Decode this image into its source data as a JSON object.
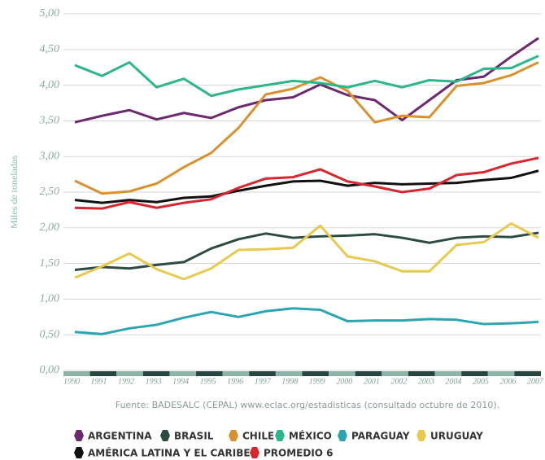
{
  "chart_data": {
    "type": "line",
    "y_label": "Miles de toneladas",
    "source": "Fuente: BADESALC (CEPAL) www.eclac.org/estadisticas (consultado octubre de 2010).",
    "categories": [
      "1990",
      "1991",
      "1992",
      "1993",
      "1994",
      "1995",
      "1996",
      "1997",
      "1998",
      "1999",
      "2000",
      "2001",
      "2002",
      "2003",
      "2004",
      "2005",
      "2006",
      "2007"
    ],
    "ylim": [
      0,
      5
    ],
    "yticks": [
      {
        "value": 0,
        "label": "0,00"
      },
      {
        "value": 0.5,
        "label": "0,50"
      },
      {
        "value": 1,
        "label": "1,00"
      },
      {
        "value": 1.5,
        "label": "1,50"
      },
      {
        "value": 2,
        "label": "2,00"
      },
      {
        "value": 2.5,
        "label": "2,50"
      },
      {
        "value": 3,
        "label": "3,00"
      },
      {
        "value": 3.5,
        "label": "3,50"
      },
      {
        "value": 4,
        "label": "4,00"
      },
      {
        "value": 4.5,
        "label": "4,50"
      },
      {
        "value": 5,
        "label": "5,00"
      }
    ],
    "grid": true,
    "series": [
      {
        "name": "ARGENTINA",
        "color": "#6b2a6e",
        "values": [
          3.48,
          3.57,
          3.65,
          3.52,
          3.61,
          3.54,
          3.69,
          3.79,
          3.83,
          4.01,
          3.86,
          3.79,
          3.51,
          3.79,
          4.07,
          4.12,
          4.4,
          4.66
        ]
      },
      {
        "name": "BRASIL",
        "color": "#2d4a45",
        "values": [
          1.41,
          1.45,
          1.43,
          1.48,
          1.52,
          1.71,
          1.84,
          1.92,
          1.86,
          1.88,
          1.89,
          1.91,
          1.86,
          1.79,
          1.86,
          1.88,
          1.87,
          1.93
        ]
      },
      {
        "name": "CHILE",
        "color": "#d9912f",
        "values": [
          2.66,
          2.48,
          2.51,
          2.62,
          2.85,
          3.05,
          3.4,
          3.87,
          3.95,
          4.11,
          3.92,
          3.48,
          3.57,
          3.55,
          3.99,
          4.03,
          4.14,
          4.32
        ]
      },
      {
        "name": "MÉXICO",
        "color": "#2cb68b",
        "values": [
          4.28,
          4.13,
          4.32,
          3.97,
          4.09,
          3.85,
          3.94,
          4.0,
          4.06,
          4.03,
          3.97,
          4.06,
          3.97,
          4.07,
          4.05,
          4.23,
          4.24,
          4.41
        ]
      },
      {
        "name": "PARAGUAY",
        "color": "#2aa5b1",
        "values": [
          0.54,
          0.51,
          0.59,
          0.64,
          0.74,
          0.82,
          0.75,
          0.83,
          0.87,
          0.85,
          0.69,
          0.7,
          0.7,
          0.72,
          0.71,
          0.65,
          0.66,
          0.68
        ]
      },
      {
        "name": "URUGUAY",
        "color": "#e7c94f",
        "values": [
          1.3,
          1.46,
          1.64,
          1.42,
          1.28,
          1.43,
          1.69,
          1.7,
          1.72,
          2.03,
          1.6,
          1.53,
          1.39,
          1.39,
          1.76,
          1.8,
          2.06,
          1.86
        ]
      },
      {
        "name": "AMÉRICA LATINA Y EL CARIBE",
        "color": "#111111",
        "values": [
          2.39,
          2.35,
          2.39,
          2.36,
          2.42,
          2.44,
          2.52,
          2.59,
          2.65,
          2.66,
          2.59,
          2.63,
          2.61,
          2.62,
          2.63,
          2.67,
          2.7,
          2.8
        ]
      },
      {
        "name": "PROMEDIO 6",
        "color": "#d7262e",
        "values": [
          2.28,
          2.27,
          2.36,
          2.28,
          2.35,
          2.4,
          2.56,
          2.69,
          2.71,
          2.82,
          2.65,
          2.58,
          2.5,
          2.55,
          2.74,
          2.78,
          2.9,
          2.98
        ]
      }
    ]
  }
}
